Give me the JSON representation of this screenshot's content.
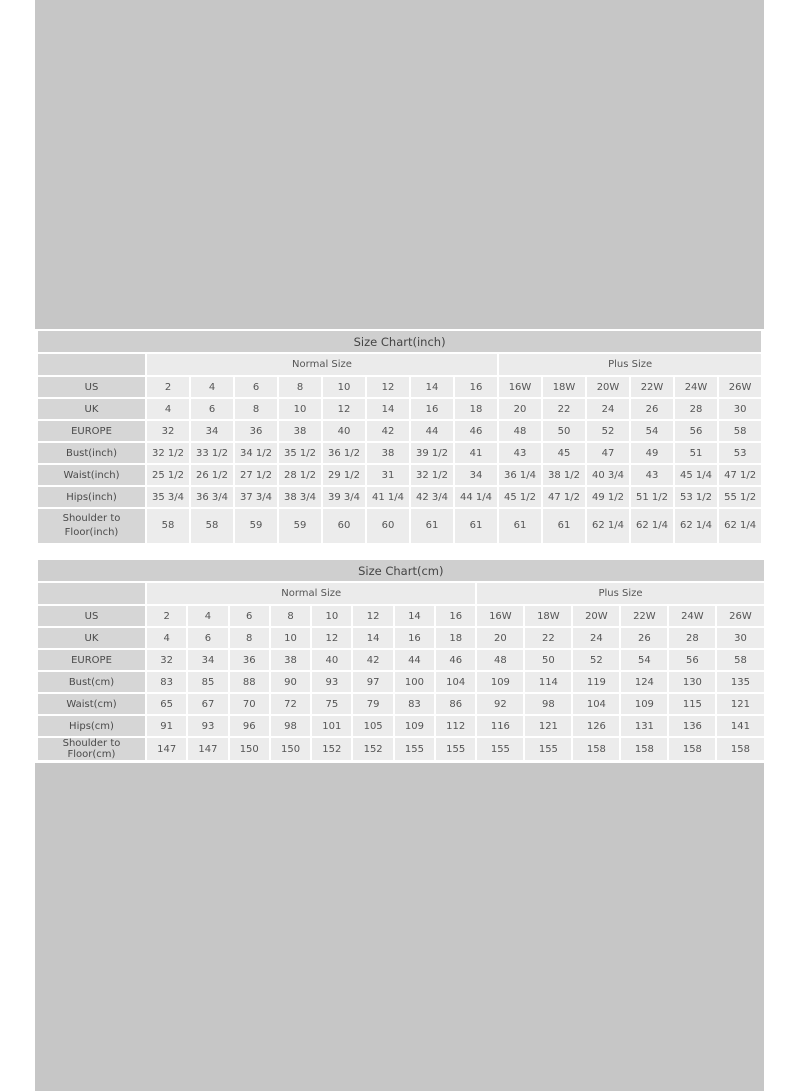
{
  "tables": [
    {
      "title": "Size Chart(inch)",
      "group_normal": "Normal Size",
      "group_plus": "Plus Size",
      "rows": [
        {
          "label": "US",
          "values": [
            "2",
            "4",
            "6",
            "8",
            "10",
            "12",
            "14",
            "16",
            "16W",
            "18W",
            "20W",
            "22W",
            "24W",
            "26W"
          ]
        },
        {
          "label": "UK",
          "values": [
            "4",
            "6",
            "8",
            "10",
            "12",
            "14",
            "16",
            "18",
            "20",
            "22",
            "24",
            "26",
            "28",
            "30"
          ]
        },
        {
          "label": "EUROPE",
          "values": [
            "32",
            "34",
            "36",
            "38",
            "40",
            "42",
            "44",
            "46",
            "48",
            "50",
            "52",
            "54",
            "56",
            "58"
          ]
        },
        {
          "label": "Bust(inch)",
          "values": [
            "32 1/2",
            "33 1/2",
            "34 1/2",
            "35 1/2",
            "36 1/2",
            "38",
            "39 1/2",
            "41",
            "43",
            "45",
            "47",
            "49",
            "51",
            "53"
          ]
        },
        {
          "label": "Waist(inch)",
          "values": [
            "25 1/2",
            "26 1/2",
            "27 1/2",
            "28 1/2",
            "29 1/2",
            "31",
            "32 1/2",
            "34",
            "36 1/4",
            "38 1/2",
            "40 3/4",
            "43",
            "45 1/4",
            "47 1/2"
          ]
        },
        {
          "label": "Hips(inch)",
          "values": [
            "35 3/4",
            "36 3/4",
            "37 3/4",
            "38 3/4",
            "39 3/4",
            "41 1/4",
            "42 3/4",
            "44 1/4",
            "45 1/2",
            "47 1/2",
            "49 1/2",
            "51 1/2",
            "53 1/2",
            "55 1/2"
          ]
        },
        {
          "label": "Shoulder to Floor(inch)",
          "values": [
            "58",
            "58",
            "59",
            "59",
            "60",
            "60",
            "61",
            "61",
            "61",
            "61",
            "62 1/4",
            "62 1/4",
            "62 1/4",
            "62 1/4"
          ]
        }
      ]
    },
    {
      "title": "Size Chart(cm)",
      "group_normal": "Normal Size",
      "group_plus": "Plus Size",
      "rows": [
        {
          "label": "US",
          "values": [
            "2",
            "4",
            "6",
            "8",
            "10",
            "12",
            "14",
            "16",
            "16W",
            "18W",
            "20W",
            "22W",
            "24W",
            "26W"
          ]
        },
        {
          "label": "UK",
          "values": [
            "4",
            "6",
            "8",
            "10",
            "12",
            "14",
            "16",
            "18",
            "20",
            "22",
            "24",
            "26",
            "28",
            "30"
          ]
        },
        {
          "label": "EUROPE",
          "values": [
            "32",
            "34",
            "36",
            "38",
            "40",
            "42",
            "44",
            "46",
            "48",
            "50",
            "52",
            "54",
            "56",
            "58"
          ]
        },
        {
          "label": "Bust(cm)",
          "values": [
            "83",
            "85",
            "88",
            "90",
            "93",
            "97",
            "100",
            "104",
            "109",
            "114",
            "119",
            "124",
            "130",
            "135"
          ]
        },
        {
          "label": "Waist(cm)",
          "values": [
            "65",
            "67",
            "70",
            "72",
            "75",
            "79",
            "83",
            "86",
            "92",
            "98",
            "104",
            "109",
            "115",
            "121"
          ]
        },
        {
          "label": "Hips(cm)",
          "values": [
            "91",
            "93",
            "96",
            "98",
            "101",
            "105",
            "109",
            "112",
            "116",
            "121",
            "126",
            "131",
            "136",
            "141"
          ]
        },
        {
          "label": "Shoulder to Floor(cm)",
          "values": [
            "147",
            "147",
            "150",
            "150",
            "152",
            "152",
            "155",
            "155",
            "155",
            "155",
            "158",
            "158",
            "158",
            "158"
          ]
        }
      ]
    }
  ]
}
